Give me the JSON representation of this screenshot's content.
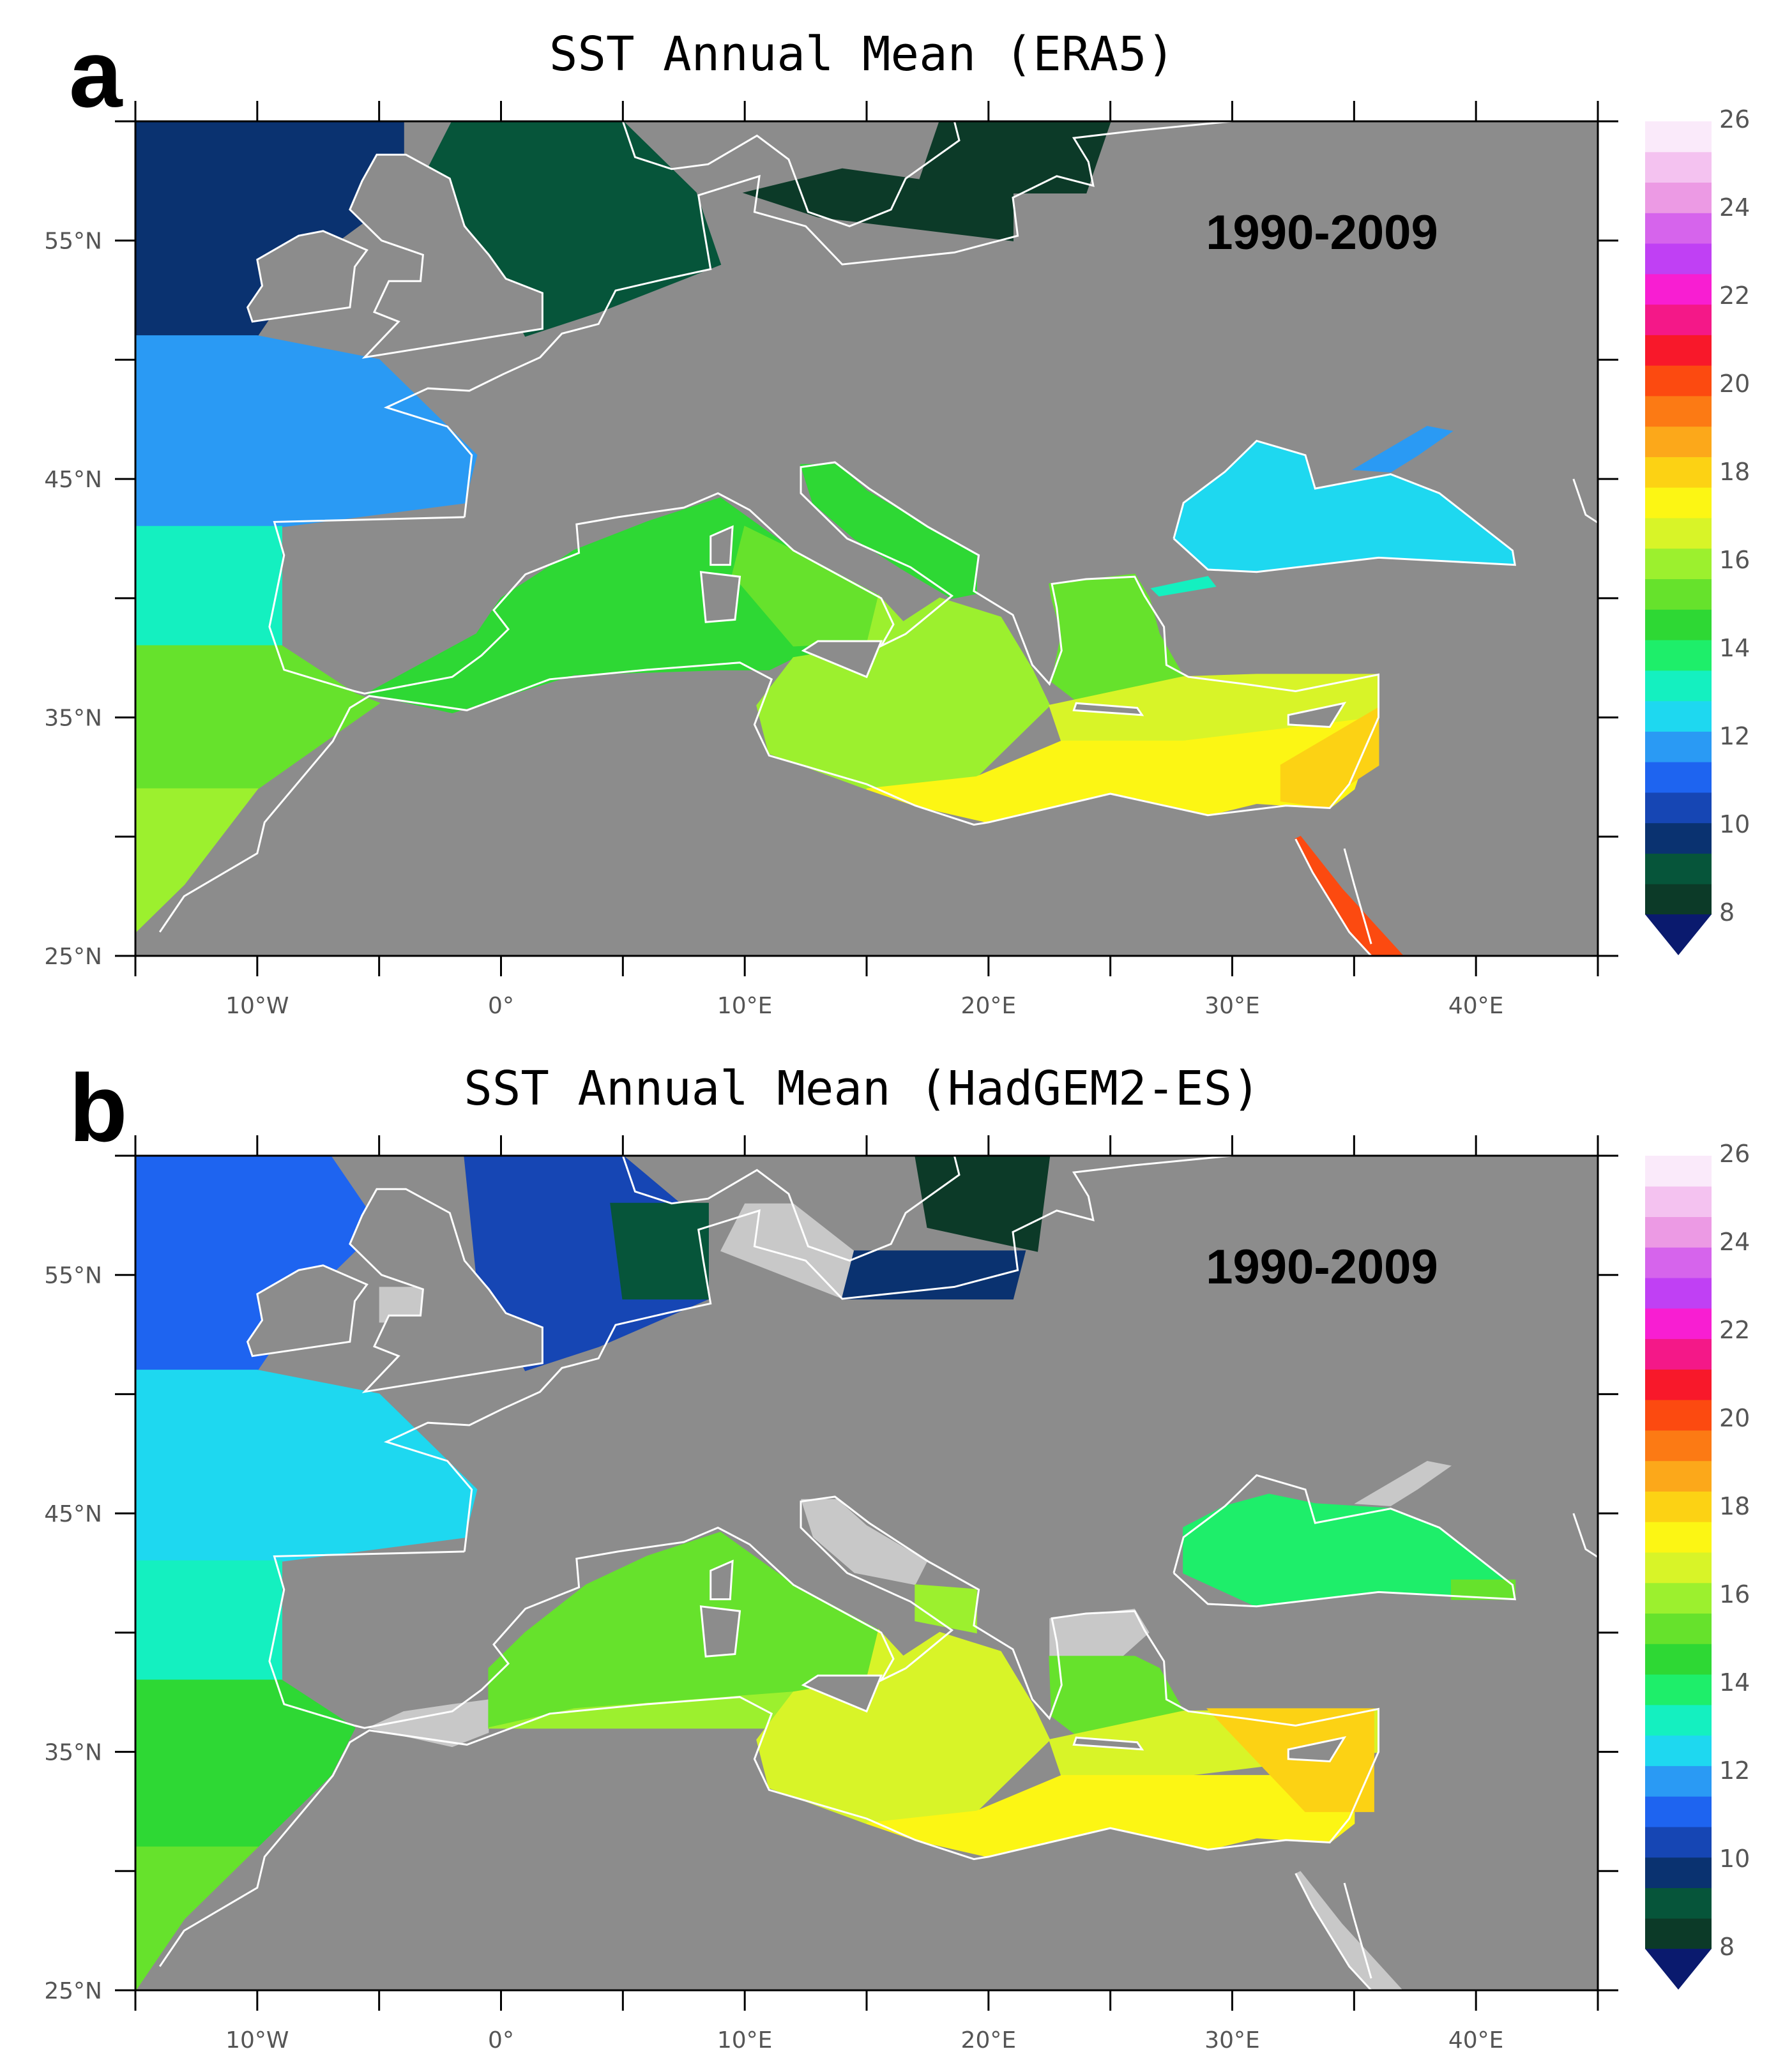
{
  "panels": [
    {
      "id": "a",
      "letter": "a",
      "title": "SST Annual Mean (ERA5)",
      "period": "1990-2009",
      "dataset": "ERA5"
    },
    {
      "id": "b",
      "letter": "b",
      "title": "SST Annual Mean (HadGEM2-ES)",
      "period": "1990-2009",
      "dataset": "HadGEM2-ES"
    }
  ],
  "axes": {
    "lon_range": [
      -15,
      45
    ],
    "lat_range": [
      25,
      60
    ],
    "lon_ticks": [
      {
        "value": -10,
        "label": "10°W"
      },
      {
        "value": 0,
        "label": "0°"
      },
      {
        "value": 10,
        "label": "10°E"
      },
      {
        "value": 20,
        "label": "20°E"
      },
      {
        "value": 30,
        "label": "30°E"
      },
      {
        "value": 40,
        "label": "40°E"
      }
    ],
    "lat_ticks": [
      {
        "value": 55,
        "label": "55°N"
      },
      {
        "value": 45,
        "label": "45°N"
      },
      {
        "value": 35,
        "label": "35°N"
      },
      {
        "value": 25,
        "label": "25°N"
      }
    ]
  },
  "colorbar": {
    "min": 8,
    "max": 26,
    "step": 1,
    "labels": [
      "26",
      "24",
      "22",
      "20",
      "18",
      "16",
      "14",
      "12",
      "10",
      "8"
    ],
    "colors": [
      "#0c3a28",
      "#06553a",
      "#0a3270",
      "#1646b4",
      "#1e64f0",
      "#2a9af4",
      "#1ed8f0",
      "#14f0c0",
      "#1eee6a",
      "#2ed834",
      "#66e22c",
      "#9cf02e",
      "#d8f428",
      "#fcf614",
      "#fcd214",
      "#fca81a",
      "#fc7a14",
      "#fc4a10",
      "#f8182a",
      "#f41888",
      "#f81ed2",
      "#c040f4",
      "#d664ec",
      "#ec9ae4",
      "#f4c2f0",
      "#faeafa"
    ],
    "underflow_color": "#0a1a6e"
  },
  "colors": {
    "land": "#8c8c8c",
    "missing_sea": "#c8c8c8",
    "coast": "#ffffff"
  }
}
